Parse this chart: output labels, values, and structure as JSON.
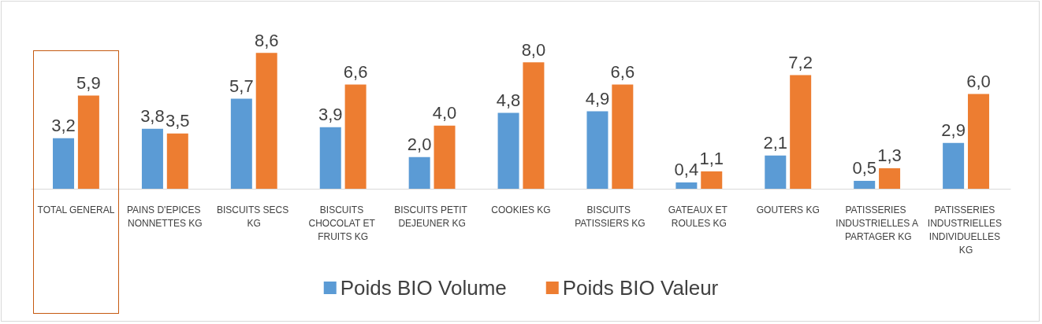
{
  "chart_data": {
    "type": "bar",
    "categories": [
      "TOTAL GENERAL",
      "PAINS D'EPICES NONNETTES KG",
      "BISCUITS SECS KG",
      "BISCUITS CHOCOLAT ET FRUITS KG",
      "BISCUITS PETIT DEJEUNER KG",
      "COOKIES KG",
      "BISCUITS PATISSIERS KG",
      "GATEAUX ET ROULES KG",
      "GOUTERS KG",
      "PATISSERIES INDUSTRIELLES A PARTAGER KG",
      "PATISSERIES INDUSTRIELLES INDIVIDUELLES KG"
    ],
    "series": [
      {
        "name": "Poids BIO Volume",
        "color": "#5b9bd5",
        "values": [
          3.2,
          3.8,
          5.7,
          3.9,
          2.0,
          4.8,
          4.9,
          0.4,
          2.1,
          0.5,
          2.9
        ],
        "value_labels": [
          "3,2",
          "3,8",
          "5,7",
          "3,9",
          "2,0",
          "4,8",
          "4,9",
          "0,4",
          "2,1",
          "0,5",
          "2,9"
        ]
      },
      {
        "name": "Poids BIO Valeur",
        "color": "#ed7d31",
        "values": [
          5.9,
          3.5,
          8.6,
          6.6,
          4.0,
          8.0,
          6.6,
          1.1,
          7.2,
          1.3,
          6.0
        ],
        "value_labels": [
          "5,9",
          "3,5",
          "8,6",
          "6,6",
          "4,0",
          "8,0",
          "6,6",
          "1,1",
          "7,2",
          "1,3",
          "6,0"
        ]
      }
    ],
    "legend": "bottom"
  }
}
